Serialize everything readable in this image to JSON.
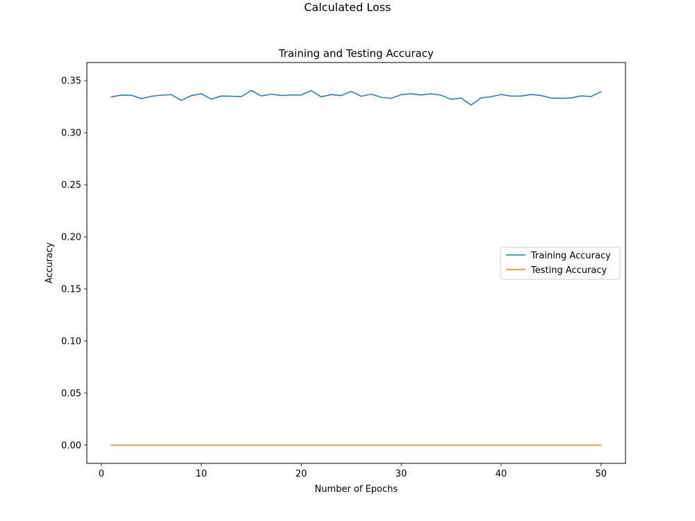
{
  "figure": {
    "suptitle": "Calculated Loss"
  },
  "chart_data": {
    "type": "line",
    "title": "Training and Testing Accuracy",
    "xlabel": "Number of Epochs",
    "ylabel": "Accuracy",
    "xlim": [
      -1.45,
      52.45
    ],
    "ylim": [
      -0.0175,
      0.3675
    ],
    "xticks": [
      0,
      10,
      20,
      30,
      40,
      50
    ],
    "yticks": [
      0.0,
      0.05,
      0.1,
      0.15,
      0.2,
      0.25,
      0.3,
      0.35
    ],
    "ytick_labels": [
      "0.00",
      "0.05",
      "0.10",
      "0.15",
      "0.20",
      "0.25",
      "0.30",
      "0.35"
    ],
    "grid": false,
    "legend_position": "center-right",
    "x": [
      1,
      2,
      3,
      4,
      5,
      6,
      7,
      8,
      9,
      10,
      11,
      12,
      13,
      14,
      15,
      16,
      17,
      18,
      19,
      20,
      21,
      22,
      23,
      24,
      25,
      26,
      27,
      28,
      29,
      30,
      31,
      32,
      33,
      34,
      35,
      36,
      37,
      38,
      39,
      40,
      41,
      42,
      43,
      44,
      45,
      46,
      47,
      48,
      49,
      50
    ],
    "series": [
      {
        "name": "Training Accuracy",
        "color": "#1f77b4",
        "values": [
          0.3345,
          0.3362,
          0.3361,
          0.3328,
          0.3351,
          0.3361,
          0.3366,
          0.3312,
          0.3357,
          0.3375,
          0.3323,
          0.3353,
          0.3351,
          0.3347,
          0.3407,
          0.3354,
          0.3371,
          0.3358,
          0.3363,
          0.3363,
          0.3405,
          0.3345,
          0.3367,
          0.3357,
          0.3398,
          0.3351,
          0.3371,
          0.3341,
          0.3331,
          0.3367,
          0.3375,
          0.3363,
          0.3375,
          0.3361,
          0.3321,
          0.3334,
          0.3267,
          0.3335,
          0.3346,
          0.3368,
          0.3352,
          0.3353,
          0.3368,
          0.3358,
          0.3334,
          0.3331,
          0.3334,
          0.3355,
          0.3348,
          0.3394
        ]
      },
      {
        "name": "Testing Accuracy",
        "color": "#ff7f0e",
        "values": [
          0,
          0,
          0,
          0,
          0,
          0,
          0,
          0,
          0,
          0,
          0,
          0,
          0,
          0,
          0,
          0,
          0,
          0,
          0,
          0,
          0,
          0,
          0,
          0,
          0,
          0,
          0,
          0,
          0,
          0,
          0,
          0,
          0,
          0,
          0,
          0,
          0,
          0,
          0,
          0,
          0,
          0,
          0,
          0,
          0,
          0,
          0,
          0,
          0,
          0
        ]
      }
    ]
  }
}
